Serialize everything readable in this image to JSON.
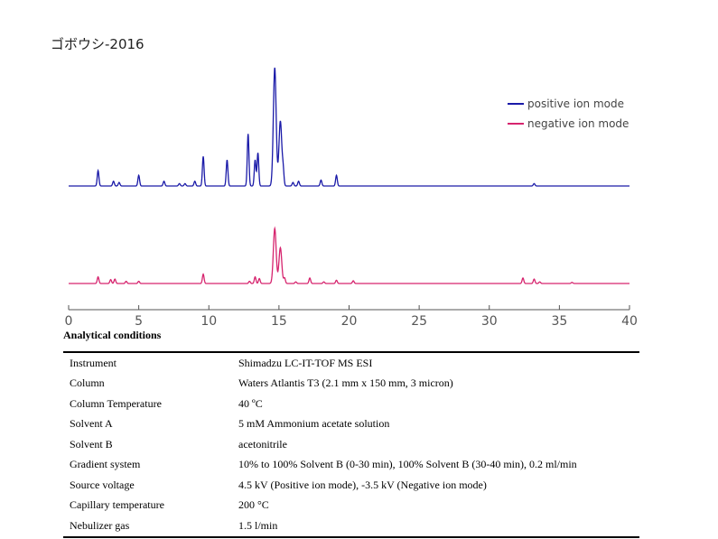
{
  "title": "ゴボウシ-2016",
  "legend": [
    {
      "label": "positive ion mode",
      "color": "#1a1aa8"
    },
    {
      "label": "negative ion mode",
      "color": "#d6246e"
    }
  ],
  "chart_data": {
    "type": "line",
    "title": "ゴボウシ-2016",
    "xlim": [
      0,
      40
    ],
    "x_ticks": [
      "0",
      "5",
      "10",
      "15",
      "20",
      "25",
      "30",
      "35",
      "40"
    ],
    "legend_position": "top-right",
    "series": [
      {
        "name": "positive ion mode",
        "color": "#1a1aa8",
        "peaks": [
          {
            "x": 2.1,
            "h": 0.13
          },
          {
            "x": 3.2,
            "h": 0.04
          },
          {
            "x": 3.6,
            "h": 0.03
          },
          {
            "x": 5.0,
            "h": 0.09
          },
          {
            "x": 6.8,
            "h": 0.04
          },
          {
            "x": 7.9,
            "h": 0.02
          },
          {
            "x": 8.3,
            "h": 0.02
          },
          {
            "x": 9.0,
            "h": 0.04
          },
          {
            "x": 9.6,
            "h": 0.25
          },
          {
            "x": 11.3,
            "h": 0.22
          },
          {
            "x": 12.8,
            "h": 0.44
          },
          {
            "x": 13.3,
            "h": 0.22
          },
          {
            "x": 13.5,
            "h": 0.28
          },
          {
            "x": 14.7,
            "h": 1.0
          },
          {
            "x": 15.1,
            "h": 0.55
          },
          {
            "x": 15.3,
            "h": 0.12
          },
          {
            "x": 16.0,
            "h": 0.03
          },
          {
            "x": 16.4,
            "h": 0.04
          },
          {
            "x": 18.0,
            "h": 0.05
          },
          {
            "x": 19.1,
            "h": 0.09
          },
          {
            "x": 33.2,
            "h": 0.02
          }
        ]
      },
      {
        "name": "negative ion mode",
        "color": "#d6246e",
        "peaks": [
          {
            "x": 2.1,
            "h": 0.12
          },
          {
            "x": 3.0,
            "h": 0.07
          },
          {
            "x": 3.3,
            "h": 0.08
          },
          {
            "x": 4.1,
            "h": 0.04
          },
          {
            "x": 5.0,
            "h": 0.04
          },
          {
            "x": 9.6,
            "h": 0.17
          },
          {
            "x": 12.9,
            "h": 0.04
          },
          {
            "x": 13.3,
            "h": 0.12
          },
          {
            "x": 13.6,
            "h": 0.09
          },
          {
            "x": 14.7,
            "h": 1.0
          },
          {
            "x": 15.1,
            "h": 0.65
          },
          {
            "x": 15.4,
            "h": 0.1
          },
          {
            "x": 16.2,
            "h": 0.03
          },
          {
            "x": 17.2,
            "h": 0.1
          },
          {
            "x": 18.2,
            "h": 0.03
          },
          {
            "x": 19.1,
            "h": 0.06
          },
          {
            "x": 20.3,
            "h": 0.05
          },
          {
            "x": 32.4,
            "h": 0.1
          },
          {
            "x": 33.2,
            "h": 0.08
          },
          {
            "x": 33.6,
            "h": 0.03
          },
          {
            "x": 35.9,
            "h": 0.02
          }
        ]
      }
    ]
  },
  "conditions": {
    "heading": "Analytical conditions",
    "rows": [
      {
        "label": "Instrument",
        "value": "Shimadzu LC-IT-TOF MS ESI"
      },
      {
        "label": "Column",
        "value": "Waters Atlantis T3 (2.1 mm x 150 mm, 3 micron)"
      },
      {
        "label": "Column Temperature",
        "value": "40 ºC"
      },
      {
        "label": "Solvent A",
        "value": "5 mM Ammonium acetate solution"
      },
      {
        "label": "Solvent B",
        "value": "acetonitrile"
      },
      {
        "label": "Gradient system",
        "value": "10% to 100% Solvent B (0-30 min), 100% Solvent B (30-40 min), 0.2 ml/min"
      },
      {
        "label": "Source voltage",
        "value": "4.5 kV (Positive ion mode), -3.5 kV (Negative ion mode)"
      },
      {
        "label": "Capillary temperature",
        "value": "200 °C"
      },
      {
        "label": "Nebulizer gas",
        "value": "1.5 l/min"
      }
    ]
  }
}
